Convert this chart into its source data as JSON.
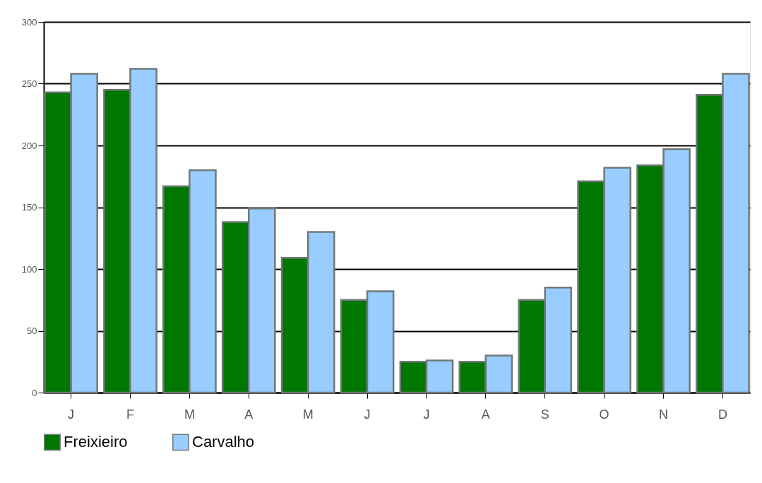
{
  "chart_data": {
    "type": "bar",
    "categories": [
      "J",
      "F",
      "M",
      "A",
      "M",
      "J",
      "J",
      "A",
      "S",
      "O",
      "N",
      "D"
    ],
    "series": [
      {
        "name": "Freixieiro",
        "color": "#007700",
        "values": [
          243,
          245,
          167,
          138,
          109,
          75,
          25,
          25,
          75,
          171,
          184,
          241
        ]
      },
      {
        "name": "Carvalho",
        "color": "#99ccff",
        "values": [
          258,
          262,
          180,
          149,
          130,
          82,
          26,
          30,
          85,
          182,
          197,
          258
        ]
      }
    ],
    "ylim": [
      0,
      300
    ],
    "yticks": [
      0,
      50,
      100,
      150,
      200,
      250,
      300
    ],
    "grid": "y",
    "legend": "bottom"
  }
}
